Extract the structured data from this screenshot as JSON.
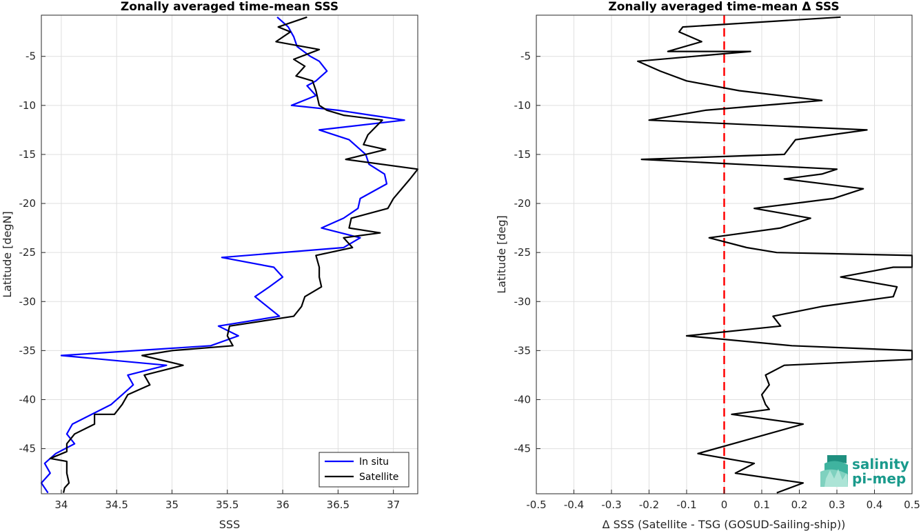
{
  "chart_data": [
    {
      "type": "line",
      "title": "Zonally averaged time-mean SSS",
      "xlabel": "SSS",
      "ylabel": "Latitude [degN]",
      "xlim": [
        33.82,
        37.22
      ],
      "ylim": [
        -49.6,
        -0.8
      ],
      "xticks": [
        34,
        34.5,
        35,
        35.5,
        36,
        36.5,
        37
      ],
      "xtick_labels": [
        "34",
        "34.5",
        "35",
        "35.5",
        "36",
        "36.5",
        "37"
      ],
      "yticks": [
        -5,
        -10,
        -15,
        -20,
        -25,
        -30,
        -35,
        -40,
        -45
      ],
      "ytick_labels": [
        "-5",
        "-10",
        "-15",
        "-20",
        "-25",
        "-30",
        "-35",
        "-40",
        "-45"
      ],
      "grid": true,
      "legend_position": "bottom-right",
      "series": [
        {
          "name": "In situ",
          "color": "#0000ff",
          "x": [
            35.95,
            36.05,
            36.1,
            36.13,
            36.25,
            36.33,
            36.4,
            36.3,
            36.22,
            36.3,
            36.08,
            36.5,
            36.8,
            37.1,
            36.33,
            36.6,
            36.75,
            36.78,
            36.92,
            36.94,
            36.7,
            36.68,
            36.55,
            36.35,
            36.7,
            36.55,
            35.45,
            35.92,
            36.0,
            35.88,
            35.75,
            35.97,
            35.42,
            35.6,
            35.35,
            34.0,
            34.95,
            34.6,
            34.65,
            34.55,
            34.45,
            34.1,
            34.05,
            34.12,
            33.95,
            33.85,
            33.9,
            33.82,
            33.88
          ],
          "y": [
            -1,
            -2,
            -3,
            -4,
            -5,
            -5.5,
            -6.5,
            -7.5,
            -8,
            -9,
            -10,
            -10.5,
            -11,
            -11.5,
            -12.5,
            -13.5,
            -15,
            -16,
            -17,
            -18,
            -19.5,
            -20.5,
            -21.5,
            -22.5,
            -23.5,
            -24.5,
            -25.5,
            -26.5,
            -27.5,
            -28.5,
            -29.5,
            -31.5,
            -32.5,
            -33.5,
            -34.5,
            -35.5,
            -36.5,
            -37.5,
            -38.5,
            -39.5,
            -40.5,
            -42.5,
            -43.5,
            -44.5,
            -45.5,
            -46.5,
            -47.5,
            -48.5,
            -49.5
          ]
        },
        {
          "name": "Satellite",
          "color": "#000000",
          "x": [
            36.22,
            35.96,
            36.07,
            35.94,
            36.33,
            36.1,
            36.2,
            36.12,
            36.27,
            36.3,
            36.33,
            36.4,
            36.55,
            36.9,
            36.77,
            36.73,
            36.93,
            36.57,
            37.22,
            37.15,
            37.0,
            36.95,
            36.62,
            36.6,
            36.88,
            36.55,
            36.63,
            36.3,
            36.33,
            36.33,
            36.35,
            36.2,
            36.17,
            36.1,
            35.52,
            35.5,
            35.55,
            35.0,
            34.73,
            35.1,
            34.75,
            34.8,
            34.6,
            34.55,
            34.48,
            34.3,
            34.3,
            34.12,
            34.05,
            34.05,
            33.9,
            34.05,
            34.05,
            34.07,
            34.03,
            34.02
          ],
          "y": [
            -1,
            -2,
            -2.5,
            -3.5,
            -4.3,
            -5.3,
            -6,
            -7,
            -7.5,
            -8.5,
            -10,
            -10.5,
            -11,
            -11.5,
            -13,
            -14,
            -14.5,
            -15.5,
            -16.5,
            -17.5,
            -19.5,
            -20.5,
            -21.5,
            -22.5,
            -23,
            -23.5,
            -24.5,
            -25.3,
            -26.5,
            -27.5,
            -28.5,
            -29.5,
            -30.5,
            -31.5,
            -32.5,
            -33.5,
            -34.5,
            -35,
            -35.5,
            -36.5,
            -37.5,
            -38.5,
            -39.5,
            -40.5,
            -41.5,
            -41.5,
            -42.5,
            -43.5,
            -44.5,
            -45.3,
            -46,
            -46.3,
            -47.5,
            -48.5,
            -49,
            -49.5
          ]
        }
      ]
    },
    {
      "type": "line",
      "title": "Zonally averaged time-mean Δ SSS",
      "xlabel": "Δ SSS (Satellite - TSG (GOSUD-Sailing-ship))",
      "ylabel": "Latitude [deg]",
      "xlim": [
        -0.5,
        0.5
      ],
      "ylim": [
        -49.6,
        -0.8
      ],
      "xticks": [
        -0.5,
        -0.4,
        -0.3,
        -0.2,
        -0.1,
        0,
        0.1,
        0.2,
        0.3,
        0.4,
        0.5
      ],
      "xtick_labels": [
        "-0.5",
        "-0.4",
        "-0.3",
        "-0.2",
        "-0.1",
        "0",
        "0.1",
        "0.2",
        "0.3",
        "0.4",
        "0.5"
      ],
      "yticks": [
        -5,
        -10,
        -15,
        -20,
        -25,
        -30,
        -35,
        -40,
        -45
      ],
      "ytick_labels": [
        "-5",
        "-10",
        "-15",
        "-20",
        "-25",
        "-30",
        "-35",
        "-40",
        "-45"
      ],
      "grid": true,
      "reference_line": {
        "x": 0,
        "color": "#ff0000",
        "style": "dashed"
      },
      "series": [
        {
          "color": "#000000",
          "x": [
            0.31,
            -0.11,
            -0.12,
            -0.06,
            -0.15,
            0.07,
            -0.23,
            -0.17,
            -0.1,
            0.04,
            0.26,
            -0.05,
            -0.2,
            0.38,
            0.19,
            0.18,
            0.16,
            -0.22,
            0.3,
            0.26,
            0.16,
            0.37,
            0.29,
            0.08,
            0.23,
            0.15,
            -0.04,
            0.06,
            0.14,
            0.5,
            0.5,
            0.45,
            0.31,
            0.46,
            0.45,
            0.26,
            0.13,
            0.15,
            -0.1,
            0.18,
            0.5,
            0.5,
            0.16,
            0.11,
            0.12,
            0.1,
            0.11,
            0.12,
            0.02,
            0.21,
            -0.07,
            0.08,
            0.03,
            0.21,
            0.14
          ],
          "y": [
            -1,
            -2,
            -2.5,
            -3.5,
            -4.5,
            -4.5,
            -5.5,
            -6.5,
            -7.5,
            -8.5,
            -9.5,
            -10.5,
            -11.5,
            -12.5,
            -13.5,
            -14,
            -15,
            -15.5,
            -16.5,
            -17,
            -17.5,
            -18.5,
            -19.5,
            -20.5,
            -21.5,
            -22.5,
            -23.5,
            -24.5,
            -25,
            -25.3,
            -26.5,
            -26.5,
            -27.5,
            -28.5,
            -29.5,
            -30.5,
            -31.5,
            -32.5,
            -33.5,
            -34.5,
            -35,
            -35.9,
            -36.5,
            -37.5,
            -38.5,
            -39.5,
            -40.5,
            -41,
            -41.5,
            -42.5,
            -45.5,
            -46.5,
            -47.5,
            -48.5,
            -49.5
          ]
        }
      ]
    }
  ],
  "branding": {
    "logo_icon": "salinity-pi-mep-logo",
    "line1": "salinity",
    "line2": "pi-mep",
    "color": "#1a9a8c"
  },
  "legend": {
    "items": [
      {
        "label": "In situ",
        "color": "#0000ff"
      },
      {
        "label": "Satellite",
        "color": "#000000"
      }
    ]
  }
}
